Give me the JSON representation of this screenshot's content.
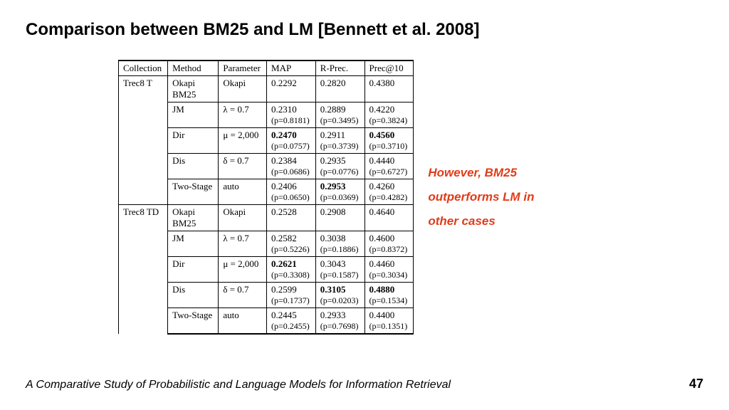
{
  "title": "Comparison between BM25 and LM [Bennett et al. 2008]",
  "annotation": "However, BM25 outperforms LM in other cases",
  "footer_text": "A Comparative Study of Probabilistic and Language Models for Information Retrieval",
  "page_number": "47",
  "table": {
    "columns": [
      "Collection",
      "Method",
      "Parameter",
      "MAP",
      "R-Prec.",
      "Prec@10"
    ],
    "groups": [
      {
        "collection": "Trec8 T",
        "rows": [
          {
            "method": "Okapi BM25",
            "method_line2": "BM25",
            "method_line1": "Okapi",
            "parameter": "Okapi",
            "map": "0.2292",
            "map_p": "",
            "rprec": "0.2820",
            "rprec_p": "",
            "p10": "0.4380",
            "p10_p": "",
            "bold": {}
          },
          {
            "method": "JM",
            "parameter": "λ = 0.7",
            "map": "0.2310",
            "map_p": "(p=0.8181)",
            "rprec": "0.2889",
            "rprec_p": "(p=0.3495)",
            "p10": "0.4220",
            "p10_p": "(p=0.3824)",
            "bold": {}
          },
          {
            "method": "Dir",
            "parameter": "μ = 2,000",
            "map": "0.2470",
            "map_p": "(p=0.0757)",
            "rprec": "0.2911",
            "rprec_p": "(p=0.3739)",
            "p10": "0.4560",
            "p10_p": "(p=0.3710)",
            "bold": {
              "map": true,
              "p10": true
            }
          },
          {
            "method": "Dis",
            "parameter": "δ = 0.7",
            "map": "0.2384",
            "map_p": "(p=0.0686)",
            "rprec": "0.2935",
            "rprec_p": "(p=0.0776)",
            "p10": "0.4440",
            "p10_p": "(p=0.6727)",
            "bold": {}
          },
          {
            "method": "Two-Stage",
            "parameter": "auto",
            "map": "0.2406",
            "map_p": "(p=0.0650)",
            "rprec": "0.2953",
            "rprec_p": "(p=0.0369)",
            "p10": "0.4260",
            "p10_p": "(p=0.4282)",
            "bold": {
              "rprec": true
            }
          }
        ]
      },
      {
        "collection": "Trec8 TD",
        "rows": [
          {
            "method": "Okapi BM25",
            "method_line2": "BM25",
            "method_line1": "Okapi",
            "parameter": "Okapi",
            "map": "0.2528",
            "map_p": "",
            "rprec": "0.2908",
            "rprec_p": "",
            "p10": "0.4640",
            "p10_p": "",
            "bold": {}
          },
          {
            "method": "JM",
            "parameter": "λ = 0.7",
            "map": "0.2582",
            "map_p": "(p=0.5226)",
            "rprec": "0.3038",
            "rprec_p": "(p=0.1886)",
            "p10": "0.4600",
            "p10_p": "(p=0.8372)",
            "bold": {}
          },
          {
            "method": "Dir",
            "parameter": "μ = 2,000",
            "map": "0.2621",
            "map_p": "(p=0.3308)",
            "rprec": "0.3043",
            "rprec_p": "(p=0.1587)",
            "p10": "0.4460",
            "p10_p": "(p=0.3034)",
            "bold": {
              "map": true
            }
          },
          {
            "method": "Dis",
            "parameter": "δ = 0.7",
            "map": "0.2599",
            "map_p": "(p=0.1737)",
            "rprec": "0.3105",
            "rprec_p": "(p=0.0203)",
            "p10": "0.4880",
            "p10_p": "(p=0.1534)",
            "bold": {
              "rprec": true,
              "p10": true
            }
          },
          {
            "method": "Two-Stage",
            "parameter": "auto",
            "map": "0.2445",
            "map_p": "(p=0.2455)",
            "rprec": "0.2933",
            "rprec_p": "(p=0.7698)",
            "p10": "0.4400",
            "p10_p": "(p=0.1351)",
            "bold": {}
          }
        ]
      }
    ]
  },
  "colors": {
    "annotation": "#e03c1a",
    "text": "#000000",
    "background": "#ffffff",
    "border": "#000000"
  },
  "typography": {
    "title_fontsize": 24,
    "table_fontsize": 13,
    "annotation_fontsize": 17,
    "footer_fontsize": 16
  }
}
